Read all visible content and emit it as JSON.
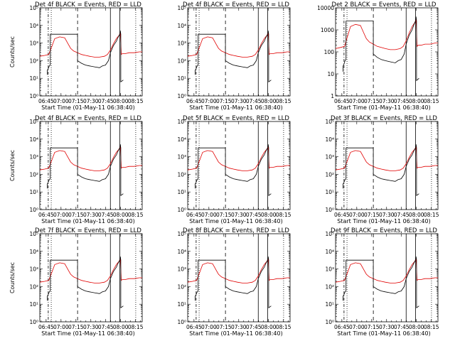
{
  "chart_data": {
    "type": "line",
    "title_template": "Det {det}  BLACK = Events, RED = LLD",
    "xlabel": "Start Time (01-May-11 06:38:40)",
    "ylabel": "Counts/sec",
    "x_ticks": [
      "06:45",
      "07:00",
      "07:15",
      "07:30",
      "07:45",
      "08:00",
      "08:15"
    ],
    "x_tick_minutes": [
      6.33,
      21.33,
      36.33,
      51.33,
      66.33,
      81.33,
      96.33
    ],
    "xlim_minutes": [
      0,
      103
    ],
    "ylim_log": [
      0,
      5
    ],
    "ylim_log_det2": [
      0,
      4
    ],
    "y_tick_labels": [
      "10⁰",
      "10¹",
      "10²",
      "10³",
      "10⁴",
      "10⁵"
    ],
    "y_tick_labels_det2": [
      "1",
      "10",
      "100",
      "1000",
      "10000"
    ],
    "markers": [
      {
        "t": 8.5,
        "style": "dotdash"
      },
      {
        "t": 11.5,
        "style": "dotted"
      },
      {
        "t": 38.0,
        "style": "dashed"
      },
      {
        "t": 71.0,
        "style": "solid"
      },
      {
        "t": 80.5,
        "style": "solid"
      },
      {
        "t": 96.5,
        "style": "dotted"
      }
    ],
    "series": [
      {
        "name": "LLD",
        "color": "#e00000",
        "t": [
          0,
          5,
          9,
          12,
          15,
          20,
          25,
          28,
          31,
          34,
          38,
          42,
          46,
          50,
          55,
          60,
          65,
          68,
          71,
          74,
          77,
          80,
          81,
          82,
          83,
          86,
          90,
          95,
          100,
          103
        ],
        "log10": [
          2.25,
          2.3,
          2.35,
          2.8,
          3.25,
          3.35,
          3.3,
          3.0,
          2.7,
          2.55,
          2.45,
          2.35,
          2.3,
          2.25,
          2.2,
          2.2,
          2.25,
          2.35,
          2.6,
          2.95,
          3.25,
          3.45,
          3.6,
          2.35,
          2.4,
          2.4,
          2.45,
          2.45,
          2.5,
          2.5
        ]
      },
      {
        "name": "Events",
        "color": "#000000",
        "t": [
          7.5,
          7.5,
          8.5,
          9.5,
          10.5,
          10.5,
          38,
          38,
          42,
          46,
          50,
          55,
          60,
          63,
          66,
          69,
          71,
          74,
          77,
          79,
          80.5,
          81,
          81.5,
          81.5,
          84
        ],
        "log10": [
          1.2,
          1.45,
          1.55,
          1.7,
          1.75,
          3.5,
          3.5,
          2.0,
          1.85,
          1.75,
          1.7,
          1.65,
          1.6,
          1.7,
          1.75,
          2.0,
          2.45,
          2.85,
          3.1,
          3.35,
          3.5,
          3.7,
          3.5,
          0.8,
          0.9
        ]
      }
    ],
    "panels": [
      {
        "det": "4f",
        "scale": "log"
      },
      {
        "det": "4f",
        "scale": "log"
      },
      {
        "det": "2",
        "scale": "log"
      },
      {
        "det": "4f",
        "scale": "log"
      },
      {
        "det": "5f",
        "scale": "log"
      },
      {
        "det": "3f",
        "scale": "log"
      },
      {
        "det": "7f",
        "scale": "log"
      },
      {
        "det": "8f",
        "scale": "log"
      },
      {
        "det": "9f",
        "scale": "log"
      }
    ]
  }
}
